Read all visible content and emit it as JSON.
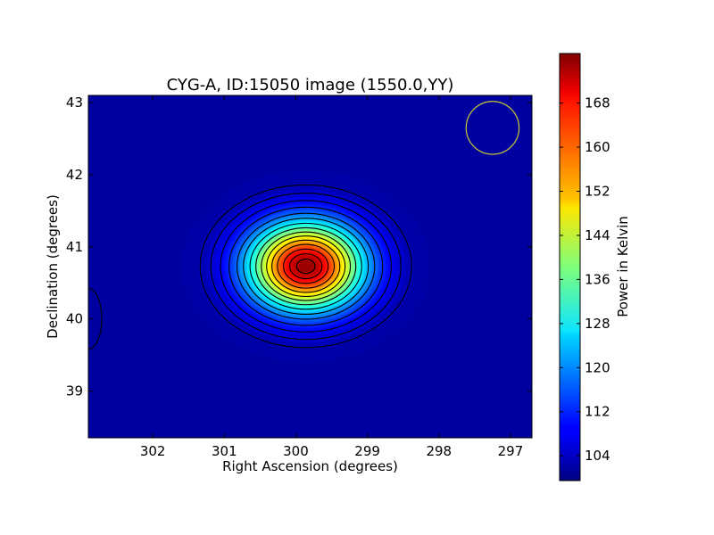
{
  "chart_data": {
    "type": "heatmap",
    "title": "CYG-A, ID:15050 image (1550.0,YY)",
    "xlabel": "Right Ascension (degrees)",
    "ylabel": "Declination (degrees)",
    "colorbar_label": "Power in Kelvin",
    "colormap": "jet",
    "xlim": [
      302.9,
      296.7
    ],
    "ylim": [
      38.35,
      43.1
    ],
    "x_ticks": [
      302,
      301,
      300,
      299,
      298,
      297
    ],
    "y_ticks": [
      39,
      40,
      41,
      42,
      43
    ],
    "colorbar_range": [
      99.5,
      177
    ],
    "colorbar_ticks": [
      104,
      112,
      120,
      128,
      136,
      144,
      152,
      160,
      168
    ],
    "background_level": 102,
    "source": {
      "ra": 299.86,
      "dec": 40.73,
      "peak": 176,
      "sigma_ra": 0.55,
      "sigma_dec": 0.42
    },
    "contour_levels": [
      104,
      106,
      109,
      113,
      118,
      123,
      129,
      135,
      141,
      147,
      153,
      159,
      165,
      170,
      174
    ],
    "beam_circle": {
      "ra": 297.25,
      "dec": 42.65,
      "radius_deg": 0.37,
      "color": "#c8c832"
    }
  }
}
